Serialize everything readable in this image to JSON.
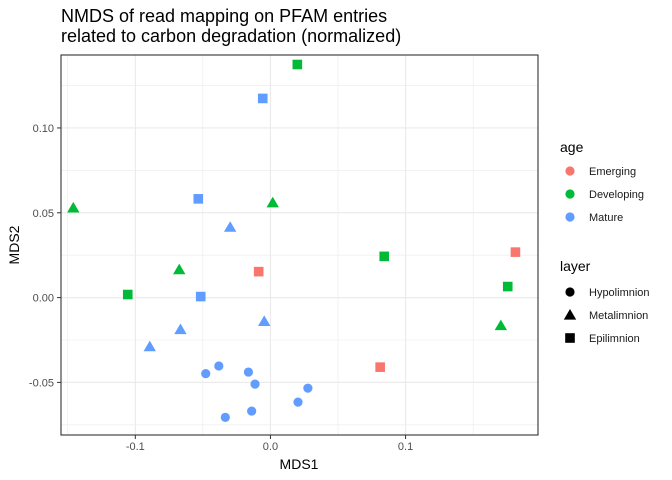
{
  "chart_data": {
    "type": "scatter",
    "title_lines": [
      "NMDS of read mapping on PFAM entries",
      "related to carbon degradation (normalized)"
    ],
    "xlabel": "MDS1",
    "ylabel": "MDS2",
    "xlim": [
      -0.155,
      0.198
    ],
    "ylim": [
      -0.081,
      0.143
    ],
    "x_ticks": [
      {
        "value": -0.1,
        "label": "-0.1"
      },
      {
        "value": 0.0,
        "label": "0.0"
      },
      {
        "value": 0.1,
        "label": "0.1"
      }
    ],
    "y_ticks": [
      {
        "value": -0.05,
        "label": "-0.05"
      },
      {
        "value": 0.0,
        "label": "0.00"
      },
      {
        "value": 0.05,
        "label": "0.05"
      },
      {
        "value": 0.1,
        "label": "0.10"
      }
    ],
    "grid": true,
    "legend_position": "right",
    "age_legend": {
      "title": "age",
      "entries": [
        {
          "key": "Emerging",
          "label": "Emerging",
          "color": "#F8766D"
        },
        {
          "key": "Developing",
          "label": "Developing",
          "color": "#00BA38"
        },
        {
          "key": "Mature",
          "label": "Mature",
          "color": "#619CFF"
        }
      ]
    },
    "layer_legend": {
      "title": "layer",
      "entries": [
        {
          "key": "Hypolimnion",
          "label": "Hypolimnion",
          "shape": "circle"
        },
        {
          "key": "Metalimnion",
          "label": "Metalimnion",
          "shape": "triangle"
        },
        {
          "key": "Epilimnion",
          "label": "Epilimnion",
          "shape": "square"
        }
      ]
    },
    "points": [
      {
        "x": 0.0199,
        "y": 0.1374,
        "age": "Developing",
        "layer": "Epilimnion"
      },
      {
        "x": -0.0057,
        "y": 0.1174,
        "age": "Mature",
        "layer": "Epilimnion"
      },
      {
        "x": -0.1459,
        "y": 0.0529,
        "age": "Developing",
        "layer": "Metalimnion"
      },
      {
        "x": -0.0534,
        "y": 0.0582,
        "age": "Mature",
        "layer": "Epilimnion"
      },
      {
        "x": 0.0017,
        "y": 0.0559,
        "age": "Developing",
        "layer": "Metalimnion"
      },
      {
        "x": -0.0298,
        "y": 0.0415,
        "age": "Mature",
        "layer": "Metalimnion"
      },
      {
        "x": 0.0842,
        "y": 0.0243,
        "age": "Developing",
        "layer": "Epilimnion"
      },
      {
        "x": 0.1813,
        "y": 0.0268,
        "age": "Emerging",
        "layer": "Epilimnion"
      },
      {
        "x": -0.0675,
        "y": 0.0165,
        "age": "Developing",
        "layer": "Metalimnion"
      },
      {
        "x": -0.0087,
        "y": 0.0153,
        "age": "Emerging",
        "layer": "Epilimnion"
      },
      {
        "x": 0.1756,
        "y": 0.0065,
        "age": "Developing",
        "layer": "Epilimnion"
      },
      {
        "x": -0.1056,
        "y": 0.0018,
        "age": "Developing",
        "layer": "Epilimnion"
      },
      {
        "x": -0.0516,
        "y": 0.0006,
        "age": "Mature",
        "layer": "Epilimnion"
      },
      {
        "x": 0.1705,
        "y": -0.0165,
        "age": "Developing",
        "layer": "Metalimnion"
      },
      {
        "x": -0.0046,
        "y": -0.014,
        "age": "Mature",
        "layer": "Metalimnion"
      },
      {
        "x": -0.0666,
        "y": -0.0188,
        "age": "Mature",
        "layer": "Metalimnion"
      },
      {
        "x": -0.0893,
        "y": -0.0289,
        "age": "Mature",
        "layer": "Metalimnion"
      },
      {
        "x": 0.0812,
        "y": -0.041,
        "age": "Emerging",
        "layer": "Epilimnion"
      },
      {
        "x": -0.0382,
        "y": -0.0403,
        "age": "Mature",
        "layer": "Hypolimnion"
      },
      {
        "x": -0.0479,
        "y": -0.0448,
        "age": "Mature",
        "layer": "Hypolimnion"
      },
      {
        "x": -0.0163,
        "y": -0.0439,
        "age": "Mature",
        "layer": "Hypolimnion"
      },
      {
        "x": -0.0114,
        "y": -0.051,
        "age": "Mature",
        "layer": "Hypolimnion"
      },
      {
        "x": 0.0277,
        "y": -0.0534,
        "age": "Mature",
        "layer": "Hypolimnion"
      },
      {
        "x": 0.0204,
        "y": -0.0616,
        "age": "Mature",
        "layer": "Hypolimnion"
      },
      {
        "x": -0.0139,
        "y": -0.0669,
        "age": "Mature",
        "layer": "Hypolimnion"
      },
      {
        "x": -0.0334,
        "y": -0.0706,
        "age": "Mature",
        "layer": "Hypolimnion"
      }
    ]
  }
}
